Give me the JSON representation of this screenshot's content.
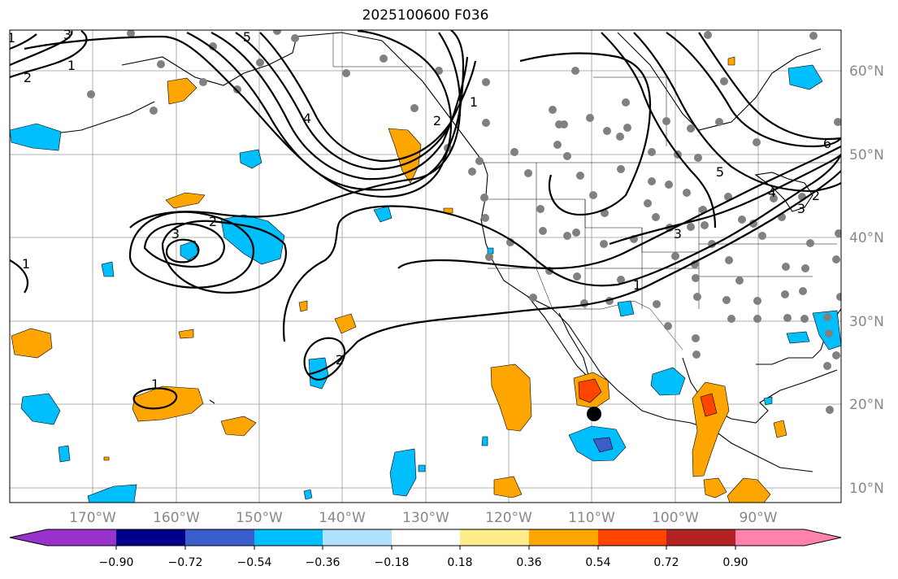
{
  "title": "2025100600 F036",
  "lat_labels": [
    "60°N",
    "50°N",
    "40°N",
    "30°N",
    "20°N",
    "10°N"
  ],
  "lon_labels": [
    "170°W",
    "160°W",
    "150°W",
    "140°W",
    "130°W",
    "120°W",
    "110°W",
    "100°W",
    "90°W"
  ],
  "colorbar": {
    "colors": [
      "#9932cc",
      "#00008b",
      "#3a5fcd",
      "#00bfff",
      "#b0e2ff",
      "#ffffff",
      "#ffec8b",
      "#ffa500",
      "#ff4500",
      "#b22222",
      "#ff82ab"
    ],
    "ticks": [
      "−0.90",
      "−0.72",
      "−0.54",
      "−0.36",
      "−0.18",
      "0.18",
      "0.36",
      "0.54",
      "0.72",
      "0.90"
    ]
  },
  "contour_labels": [
    "5",
    "4",
    "2",
    "3",
    "3",
    "2",
    "1",
    "2",
    "1",
    "1",
    "2",
    "1",
    "3",
    "5",
    "6",
    "4",
    "3",
    "2",
    "1",
    "1"
  ],
  "colors": {
    "land": "#808080",
    "obs_point": "#808080",
    "storm": "#000000"
  }
}
